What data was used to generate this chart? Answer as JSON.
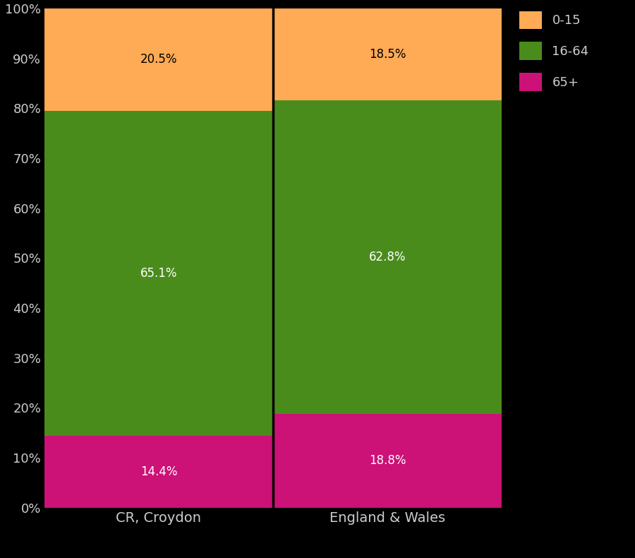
{
  "categories": [
    "CR, Croydon",
    "England & Wales"
  ],
  "segments": {
    "65+": [
      14.4,
      18.8
    ],
    "16-64": [
      65.1,
      62.8
    ],
    "0-15": [
      20.5,
      18.5
    ]
  },
  "colors": {
    "65+": "#CC1177",
    "16-64": "#4a8c1c",
    "0-15": "#FFAA55"
  },
  "label_colors": {
    "65+": "white",
    "16-64": "white",
    "0-15": "black"
  },
  "background_color": "#000000",
  "axes_background": "#000000",
  "text_color": "#cccccc",
  "yticks": [
    0,
    10,
    20,
    30,
    40,
    50,
    60,
    70,
    80,
    90,
    100
  ],
  "ytick_labels": [
    "0%",
    "10%",
    "20%",
    "30%",
    "40%",
    "50%",
    "60%",
    "70%",
    "80%",
    "90%",
    "100%"
  ],
  "bar_width": 1.0,
  "legend_order": [
    "0-15",
    "16-64",
    "65+"
  ],
  "legend_fontsize": 13,
  "tick_fontsize": 13,
  "label_fontsize": 14,
  "annotation_fontsize": 12
}
